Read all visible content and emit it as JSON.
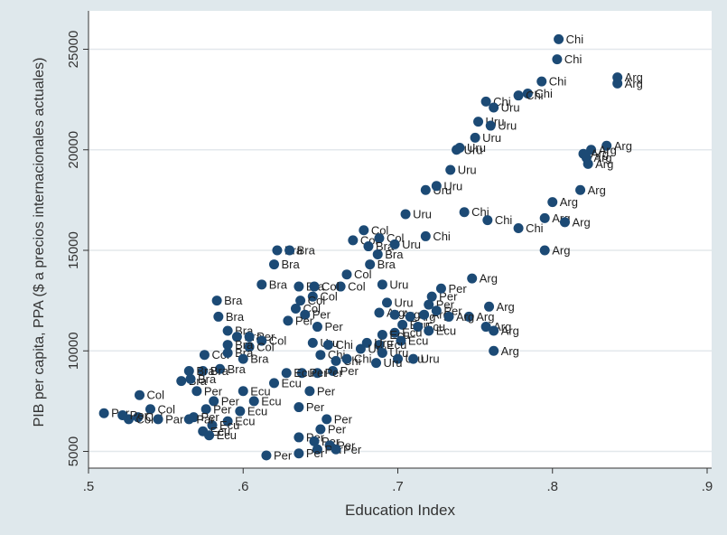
{
  "chart_data": {
    "type": "scatter",
    "xlabel": "Education Index",
    "ylabel": "PIB per capita, PPA ($ a precios internacionales actuales)",
    "xlim": [
      0.5,
      0.9
    ],
    "ylim": [
      4500,
      26000
    ],
    "x_ticks": [
      0.5,
      0.6,
      0.7,
      0.8,
      0.9
    ],
    "x_tick_labels": [
      ".5",
      ".6",
      ".7",
      ".8",
      ".9"
    ],
    "y_ticks": [
      5000,
      10000,
      15000,
      20000,
      25000
    ],
    "y_tick_labels": [
      "5000",
      "10000",
      "15000",
      "20000",
      "25000"
    ],
    "grid": "horizontal",
    "colors": {
      "marker": "#1c4a75",
      "panel": "#ffffff",
      "background": "#dfe8ec",
      "grid": "#e3e8ec"
    },
    "points": [
      {
        "x": 0.804,
        "y": 25500,
        "label": "Chi"
      },
      {
        "x": 0.803,
        "y": 24500,
        "label": "Chi"
      },
      {
        "x": 0.793,
        "y": 23400,
        "label": "Chi"
      },
      {
        "x": 0.784,
        "y": 22800,
        "label": "Chi"
      },
      {
        "x": 0.778,
        "y": 22700,
        "label": "Chi"
      },
      {
        "x": 0.757,
        "y": 22400,
        "label": "Chi"
      },
      {
        "x": 0.762,
        "y": 22100,
        "label": "Uru"
      },
      {
        "x": 0.752,
        "y": 21400,
        "label": "Uru"
      },
      {
        "x": 0.76,
        "y": 21200,
        "label": "Uru"
      },
      {
        "x": 0.75,
        "y": 20600,
        "label": "Uru"
      },
      {
        "x": 0.74,
        "y": 20100,
        "label": "Uru"
      },
      {
        "x": 0.738,
        "y": 20000,
        "label": "Uru"
      },
      {
        "x": 0.734,
        "y": 19000,
        "label": "Uru"
      },
      {
        "x": 0.718,
        "y": 18000,
        "label": "Uru"
      },
      {
        "x": 0.725,
        "y": 18200,
        "label": "Uru"
      },
      {
        "x": 0.705,
        "y": 16800,
        "label": "Uru"
      },
      {
        "x": 0.743,
        "y": 16900,
        "label": "Chi"
      },
      {
        "x": 0.758,
        "y": 16500,
        "label": "Chi"
      },
      {
        "x": 0.778,
        "y": 16100,
        "label": "Chi"
      },
      {
        "x": 0.718,
        "y": 15700,
        "label": "Chi"
      },
      {
        "x": 0.842,
        "y": 23600,
        "label": "Arg"
      },
      {
        "x": 0.842,
        "y": 23300,
        "label": "Arg"
      },
      {
        "x": 0.835,
        "y": 20200,
        "label": "Arg"
      },
      {
        "x": 0.825,
        "y": 20000,
        "label": "Arg"
      },
      {
        "x": 0.82,
        "y": 19800,
        "label": "Arg"
      },
      {
        "x": 0.822,
        "y": 19600,
        "label": "Arg"
      },
      {
        "x": 0.823,
        "y": 19300,
        "label": "Arg"
      },
      {
        "x": 0.818,
        "y": 18000,
        "label": "Arg"
      },
      {
        "x": 0.8,
        "y": 17400,
        "label": "Arg"
      },
      {
        "x": 0.795,
        "y": 16600,
        "label": "Arg"
      },
      {
        "x": 0.808,
        "y": 16400,
        "label": "Arg"
      },
      {
        "x": 0.795,
        "y": 15000,
        "label": "Arg"
      },
      {
        "x": 0.748,
        "y": 13600,
        "label": "Arg"
      },
      {
        "x": 0.759,
        "y": 12200,
        "label": "Arg"
      },
      {
        "x": 0.746,
        "y": 11700,
        "label": "Arg"
      },
      {
        "x": 0.757,
        "y": 11200,
        "label": "Arg"
      },
      {
        "x": 0.762,
        "y": 11000,
        "label": "Arg"
      },
      {
        "x": 0.762,
        "y": 10000,
        "label": "Arg"
      },
      {
        "x": 0.678,
        "y": 16000,
        "label": "Col"
      },
      {
        "x": 0.671,
        "y": 15500,
        "label": "Col"
      },
      {
        "x": 0.688,
        "y": 15600,
        "label": "Col"
      },
      {
        "x": 0.681,
        "y": 15200,
        "label": "Bra"
      },
      {
        "x": 0.687,
        "y": 14800,
        "label": "Bra"
      },
      {
        "x": 0.682,
        "y": 14300,
        "label": "Bra"
      },
      {
        "x": 0.667,
        "y": 13800,
        "label": "Col"
      },
      {
        "x": 0.69,
        "y": 13300,
        "label": "Uru"
      },
      {
        "x": 0.698,
        "y": 15300,
        "label": "Uru"
      },
      {
        "x": 0.663,
        "y": 13200,
        "label": "Col"
      },
      {
        "x": 0.622,
        "y": 15000,
        "label": "Bra"
      },
      {
        "x": 0.63,
        "y": 15000,
        "label": "Bra"
      },
      {
        "x": 0.62,
        "y": 14300,
        "label": "Bra"
      },
      {
        "x": 0.612,
        "y": 13300,
        "label": "Bra"
      },
      {
        "x": 0.636,
        "y": 13200,
        "label": "Bra"
      },
      {
        "x": 0.646,
        "y": 13200,
        "label": "Col"
      },
      {
        "x": 0.645,
        "y": 12700,
        "label": "Col"
      },
      {
        "x": 0.637,
        "y": 12500,
        "label": "Col"
      },
      {
        "x": 0.583,
        "y": 12500,
        "label": "Bra"
      },
      {
        "x": 0.584,
        "y": 11700,
        "label": "Bra"
      },
      {
        "x": 0.634,
        "y": 12100,
        "label": "Col"
      },
      {
        "x": 0.64,
        "y": 11800,
        "label": "Per"
      },
      {
        "x": 0.629,
        "y": 11500,
        "label": "Per"
      },
      {
        "x": 0.648,
        "y": 11200,
        "label": "Per"
      },
      {
        "x": 0.59,
        "y": 11000,
        "label": "Bra"
      },
      {
        "x": 0.596,
        "y": 10700,
        "label": "Bra"
      },
      {
        "x": 0.604,
        "y": 10700,
        "label": "Per"
      },
      {
        "x": 0.612,
        "y": 10500,
        "label": "Col"
      },
      {
        "x": 0.604,
        "y": 10200,
        "label": "Col"
      },
      {
        "x": 0.59,
        "y": 10300,
        "label": "Bra"
      },
      {
        "x": 0.575,
        "y": 9800,
        "label": "Col"
      },
      {
        "x": 0.59,
        "y": 9900,
        "label": "Bra"
      },
      {
        "x": 0.6,
        "y": 9600,
        "label": "Bra"
      },
      {
        "x": 0.585,
        "y": 9100,
        "label": "Bra"
      },
      {
        "x": 0.574,
        "y": 9000,
        "label": "Bra"
      },
      {
        "x": 0.565,
        "y": 9000,
        "label": "Bra"
      },
      {
        "x": 0.56,
        "y": 8500,
        "label": "Bra"
      },
      {
        "x": 0.566,
        "y": 8600,
        "label": "Bra"
      },
      {
        "x": 0.57,
        "y": 8000,
        "label": "Per"
      },
      {
        "x": 0.581,
        "y": 7500,
        "label": "Per"
      },
      {
        "x": 0.576,
        "y": 7100,
        "label": "Per"
      },
      {
        "x": 0.62,
        "y": 8400,
        "label": "Ecu"
      },
      {
        "x": 0.6,
        "y": 8000,
        "label": "Ecu"
      },
      {
        "x": 0.607,
        "y": 7500,
        "label": "Ecu"
      },
      {
        "x": 0.598,
        "y": 7000,
        "label": "Ecu"
      },
      {
        "x": 0.59,
        "y": 6500,
        "label": "Ecu"
      },
      {
        "x": 0.58,
        "y": 6300,
        "label": "Ecu"
      },
      {
        "x": 0.574,
        "y": 6000,
        "label": "Ecu"
      },
      {
        "x": 0.578,
        "y": 5800,
        "label": "Ecu"
      },
      {
        "x": 0.568,
        "y": 6700,
        "label": "Per"
      },
      {
        "x": 0.533,
        "y": 7800,
        "label": "Col"
      },
      {
        "x": 0.54,
        "y": 7100,
        "label": "Col"
      },
      {
        "x": 0.532,
        "y": 6700,
        "label": "Col"
      },
      {
        "x": 0.526,
        "y": 6600,
        "label": "Col"
      },
      {
        "x": 0.51,
        "y": 6900,
        "label": "Per"
      },
      {
        "x": 0.522,
        "y": 6800,
        "label": "Per"
      },
      {
        "x": 0.545,
        "y": 6600,
        "label": "Par"
      },
      {
        "x": 0.565,
        "y": 6600,
        "label": "Par"
      },
      {
        "x": 0.645,
        "y": 10400,
        "label": "Uru"
      },
      {
        "x": 0.655,
        "y": 10300,
        "label": "Chi"
      },
      {
        "x": 0.65,
        "y": 9800,
        "label": "Chi"
      },
      {
        "x": 0.66,
        "y": 9500,
        "label": "Chi"
      },
      {
        "x": 0.667,
        "y": 9600,
        "label": "Chi"
      },
      {
        "x": 0.658,
        "y": 9000,
        "label": "Per"
      },
      {
        "x": 0.648,
        "y": 8900,
        "label": "Per"
      },
      {
        "x": 0.638,
        "y": 8900,
        "label": "Per"
      },
      {
        "x": 0.628,
        "y": 8900,
        "label": "Ecu"
      },
      {
        "x": 0.643,
        "y": 8000,
        "label": "Per"
      },
      {
        "x": 0.636,
        "y": 7200,
        "label": "Per"
      },
      {
        "x": 0.654,
        "y": 6600,
        "label": "Per"
      },
      {
        "x": 0.65,
        "y": 6100,
        "label": "Per"
      },
      {
        "x": 0.636,
        "y": 5700,
        "label": "Per"
      },
      {
        "x": 0.646,
        "y": 5500,
        "label": "Per"
      },
      {
        "x": 0.656,
        "y": 5300,
        "label": "Per"
      },
      {
        "x": 0.648,
        "y": 5100,
        "label": "Per"
      },
      {
        "x": 0.636,
        "y": 4900,
        "label": "Per"
      },
      {
        "x": 0.615,
        "y": 4800,
        "label": "Per"
      },
      {
        "x": 0.66,
        "y": 5100,
        "label": "Per"
      },
      {
        "x": 0.693,
        "y": 12400,
        "label": "Uru"
      },
      {
        "x": 0.688,
        "y": 11900,
        "label": "Arg"
      },
      {
        "x": 0.698,
        "y": 11800,
        "label": "Arg"
      },
      {
        "x": 0.708,
        "y": 11700,
        "label": "Arg"
      },
      {
        "x": 0.717,
        "y": 11800,
        "label": "Arg"
      },
      {
        "x": 0.722,
        "y": 12700,
        "label": "Per"
      },
      {
        "x": 0.728,
        "y": 13100,
        "label": "Per"
      },
      {
        "x": 0.72,
        "y": 12300,
        "label": "Per"
      },
      {
        "x": 0.725,
        "y": 12000,
        "label": "Per"
      },
      {
        "x": 0.733,
        "y": 11700,
        "label": "Arg"
      },
      {
        "x": 0.703,
        "y": 11300,
        "label": "Ecu"
      },
      {
        "x": 0.713,
        "y": 11200,
        "label": "Ecu"
      },
      {
        "x": 0.72,
        "y": 11000,
        "label": "Ecu"
      },
      {
        "x": 0.698,
        "y": 10900,
        "label": "Ecu"
      },
      {
        "x": 0.69,
        "y": 10800,
        "label": "Ecu"
      },
      {
        "x": 0.702,
        "y": 10500,
        "label": "Ecu"
      },
      {
        "x": 0.688,
        "y": 10300,
        "label": "Ecu"
      },
      {
        "x": 0.68,
        "y": 10400,
        "label": "Uru"
      },
      {
        "x": 0.676,
        "y": 10100,
        "label": "Uru"
      },
      {
        "x": 0.69,
        "y": 9900,
        "label": "Uru"
      },
      {
        "x": 0.7,
        "y": 9600,
        "label": "Uru"
      },
      {
        "x": 0.71,
        "y": 9600,
        "label": "Uru"
      },
      {
        "x": 0.686,
        "y": 9400,
        "label": "Uru"
      }
    ]
  }
}
